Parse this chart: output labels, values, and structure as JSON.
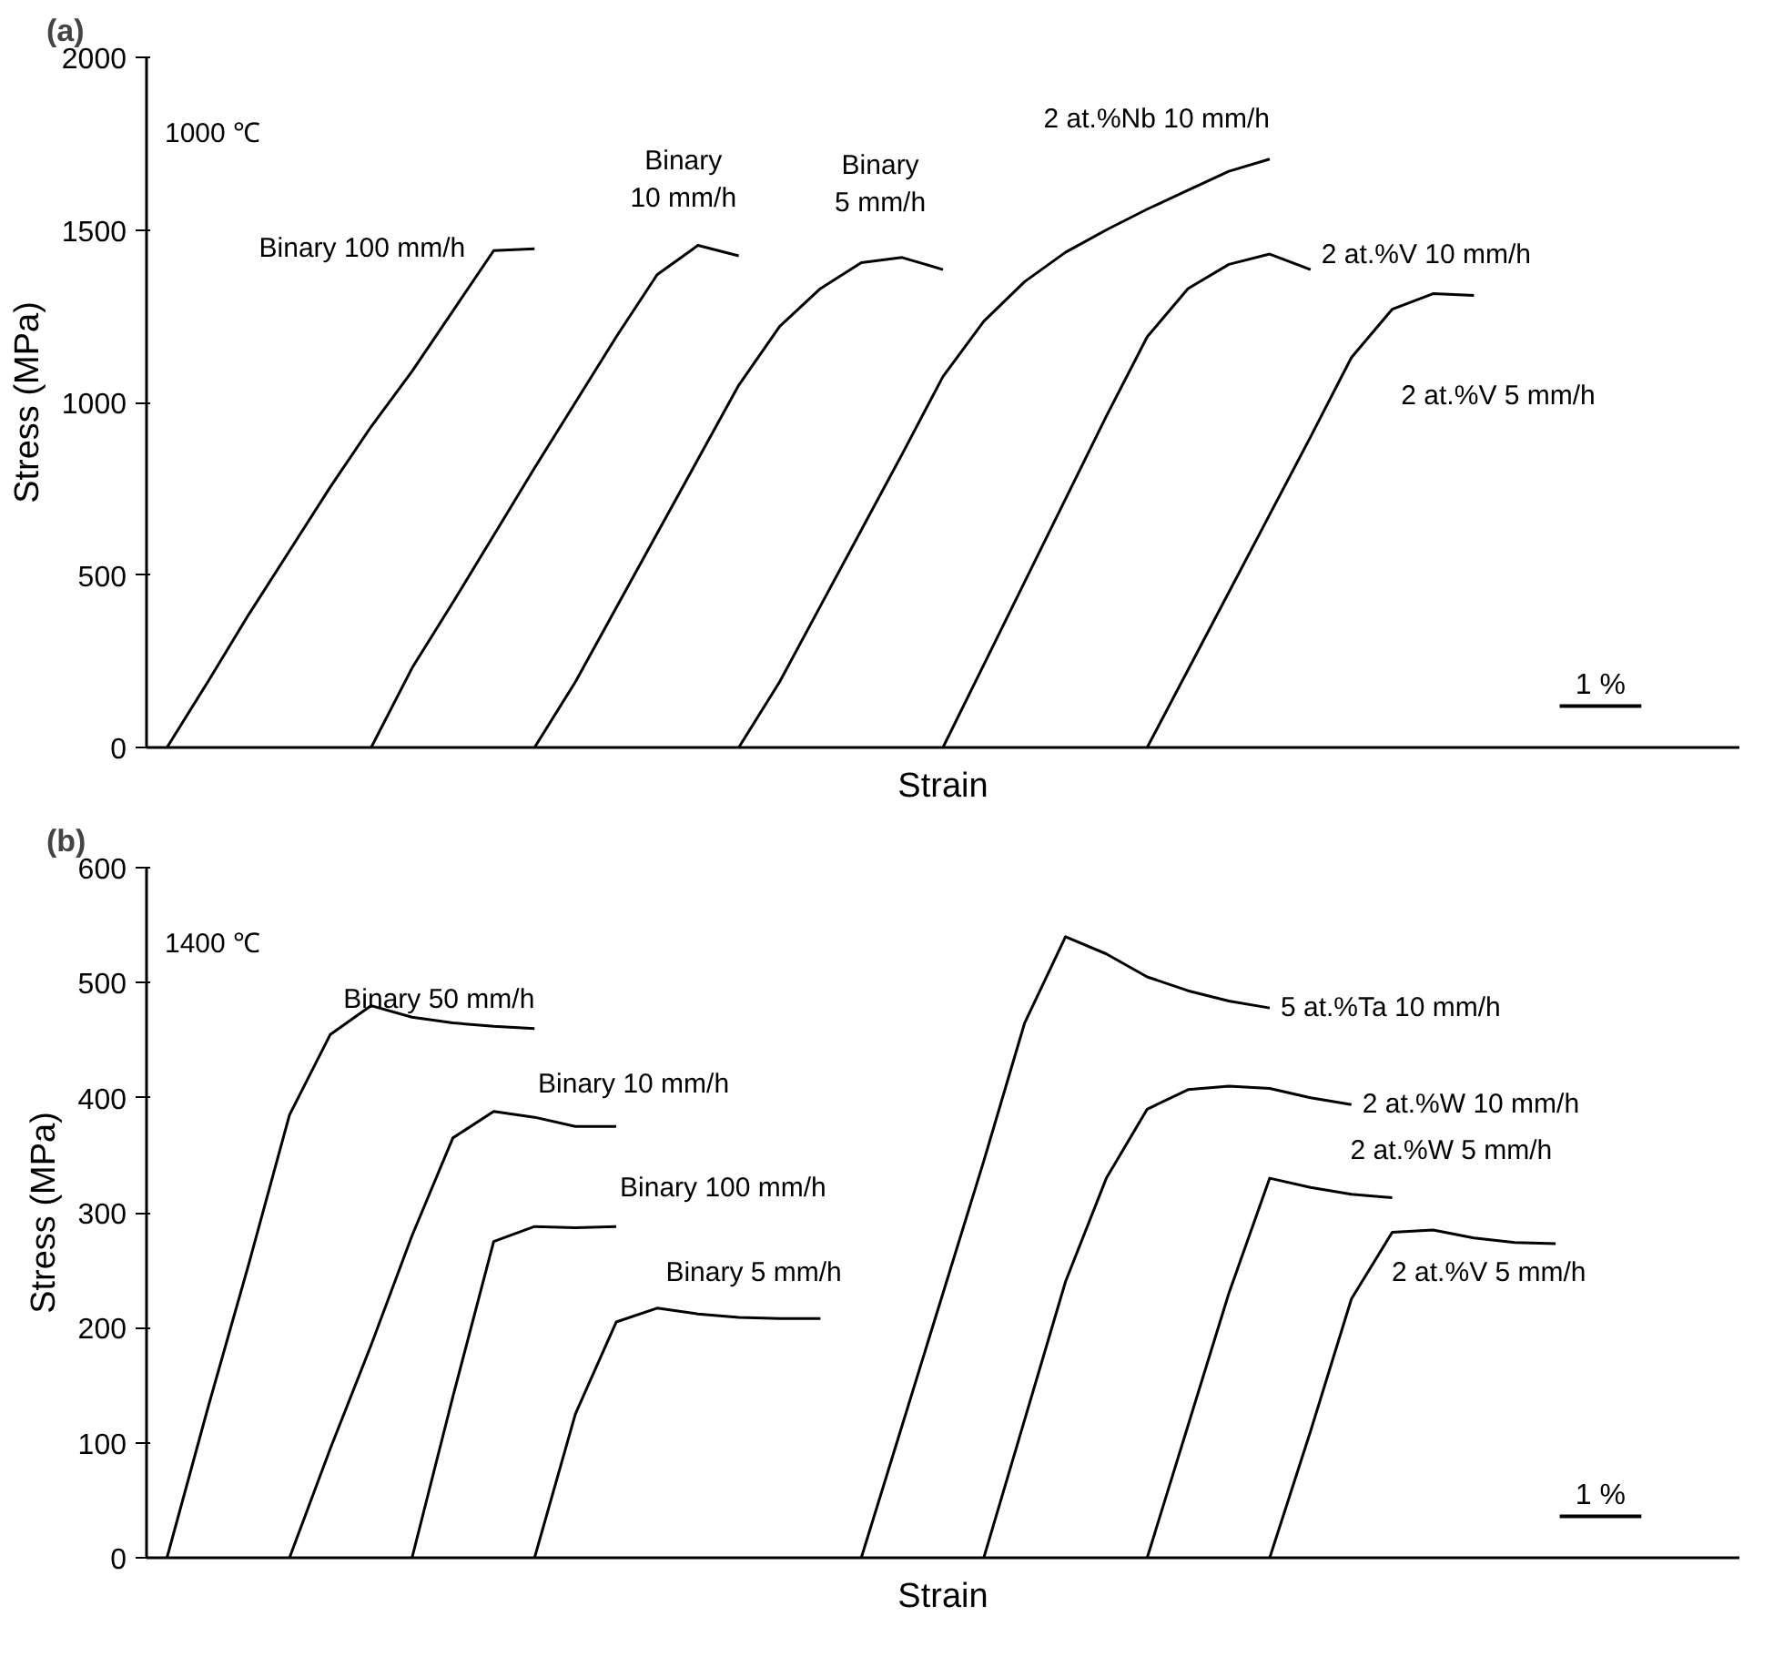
{
  "chart_data": [
    {
      "type": "line",
      "title": "(a)",
      "xlabel": "Strain",
      "ylabel": "Stress (MPa)",
      "ylim": [
        0,
        2000
      ],
      "yticks": [
        0,
        500,
        1000,
        1500,
        2000
      ],
      "tick_labels": "y",
      "grid": false,
      "legend": false,
      "marker": "none",
      "line_style": "solid",
      "categories": [
        null,
        null,
        null,
        null,
        null,
        null,
        null,
        null,
        null,
        null,
        null,
        null,
        null,
        null,
        null,
        null,
        null,
        null,
        null,
        null,
        null,
        null,
        null,
        null,
        null,
        null,
        null,
        null,
        null,
        null,
        null,
        null,
        null,
        null,
        null,
        null,
        null,
        null,
        null
      ],
      "series": [
        {
          "name": "Binary 100 mm/h",
          "color": "#000000",
          "values": [
            0,
            190,
            385,
            570,
            755,
            930,
            1090,
            1265,
            1440,
            1445,
            null,
            null,
            null,
            null,
            null,
            null,
            null,
            null,
            null,
            null,
            null,
            null,
            null,
            null,
            null,
            null,
            null,
            null,
            null,
            null,
            null,
            null,
            null,
            null,
            null,
            null,
            null,
            null,
            null
          ]
        },
        {
          "name": "Binary\n10 mm/h",
          "color": "#000000",
          "values": [
            null,
            null,
            null,
            null,
            null,
            0,
            230,
            420,
            615,
            810,
            1000,
            1190,
            1370,
            1455,
            1425,
            null,
            null,
            null,
            null,
            null,
            null,
            null,
            null,
            null,
            null,
            null,
            null,
            null,
            null,
            null,
            null,
            null,
            null,
            null,
            null,
            null,
            null,
            null,
            null
          ]
        },
        {
          "name": "Binary\n5 mm/h",
          "color": "#000000",
          "values": [
            null,
            null,
            null,
            null,
            null,
            null,
            null,
            null,
            null,
            0,
            190,
            405,
            620,
            835,
            1050,
            1220,
            1330,
            1405,
            1420,
            1385,
            null,
            null,
            null,
            null,
            null,
            null,
            null,
            null,
            null,
            null,
            null,
            null,
            null,
            null,
            null,
            null,
            null,
            null,
            null
          ]
        },
        {
          "name": "2 at.%Nb 10 mm/h",
          "color": "#000000",
          "values": [
            null,
            null,
            null,
            null,
            null,
            null,
            null,
            null,
            null,
            null,
            null,
            null,
            null,
            null,
            0,
            190,
            410,
            630,
            850,
            1075,
            1235,
            1350,
            1435,
            1500,
            1560,
            1615,
            1670,
            1705,
            null,
            null,
            null,
            null,
            null,
            null,
            null,
            null,
            null,
            null,
            null
          ]
        },
        {
          "name": "2 at.%V 10 mm/h",
          "color": "#000000",
          "values": [
            null,
            null,
            null,
            null,
            null,
            null,
            null,
            null,
            null,
            null,
            null,
            null,
            null,
            null,
            null,
            null,
            null,
            null,
            null,
            0,
            240,
            480,
            720,
            960,
            1190,
            1330,
            1400,
            1430,
            1385,
            null,
            null,
            null,
            null,
            null,
            null,
            null,
            null,
            null,
            null
          ]
        },
        {
          "name": "2 at.%V 5 mm/h",
          "color": "#000000",
          "values": [
            null,
            null,
            null,
            null,
            null,
            null,
            null,
            null,
            null,
            null,
            null,
            null,
            null,
            null,
            null,
            null,
            null,
            null,
            null,
            null,
            null,
            null,
            null,
            null,
            0,
            225,
            450,
            675,
            900,
            1130,
            1270,
            1315,
            1310,
            null,
            null,
            null,
            null,
            null,
            null
          ]
        }
      ],
      "annotations": [
        "1000 ℃",
        "1 %"
      ]
    },
    {
      "type": "line",
      "title": "(b)",
      "xlabel": "Strain",
      "ylabel": "Stress (MPa)",
      "ylim": [
        0,
        600
      ],
      "yticks": [
        0,
        100,
        200,
        300,
        400,
        500,
        600
      ],
      "tick_labels": "y",
      "grid": false,
      "legend": false,
      "marker": "none",
      "line_style": "solid",
      "categories": [
        null,
        null,
        null,
        null,
        null,
        null,
        null,
        null,
        null,
        null,
        null,
        null,
        null,
        null,
        null,
        null,
        null,
        null,
        null,
        null,
        null,
        null,
        null,
        null,
        null,
        null,
        null,
        null,
        null,
        null,
        null,
        null,
        null,
        null,
        null,
        null,
        null,
        null,
        null
      ],
      "series": [
        {
          "name": "Binary 50 mm/h",
          "color": "#000000",
          "values": [
            0,
            130,
            255,
            385,
            455,
            480,
            470,
            465,
            462,
            460,
            null,
            null,
            null,
            null,
            null,
            null,
            null,
            null,
            null,
            null,
            null,
            null,
            null,
            null,
            null,
            null,
            null,
            null,
            null,
            null,
            null,
            null,
            null,
            null,
            null,
            null,
            null,
            null,
            null
          ]
        },
        {
          "name": "Binary 10 mm/h",
          "color": "#000000",
          "values": [
            null,
            null,
            null,
            0,
            95,
            185,
            280,
            365,
            388,
            383,
            375,
            375,
            null,
            null,
            null,
            null,
            null,
            null,
            null,
            null,
            null,
            null,
            null,
            null,
            null,
            null,
            null,
            null,
            null,
            null,
            null,
            null,
            null,
            null,
            null,
            null,
            null,
            null,
            null
          ]
        },
        {
          "name": "Binary 100 mm/h",
          "color": "#000000",
          "values": [
            null,
            null,
            null,
            null,
            null,
            null,
            0,
            140,
            275,
            288,
            287,
            288,
            null,
            null,
            null,
            null,
            null,
            null,
            null,
            null,
            null,
            null,
            null,
            null,
            null,
            null,
            null,
            null,
            null,
            null,
            null,
            null,
            null,
            null,
            null,
            null,
            null,
            null,
            null
          ]
        },
        {
          "name": "Binary 5 mm/h",
          "color": "#000000",
          "values": [
            null,
            null,
            null,
            null,
            null,
            null,
            null,
            null,
            null,
            0,
            125,
            205,
            217,
            212,
            209,
            208,
            208,
            null,
            null,
            null,
            null,
            null,
            null,
            null,
            null,
            null,
            null,
            null,
            null,
            null,
            null,
            null,
            null,
            null,
            null,
            null,
            null,
            null,
            null
          ]
        },
        {
          "name": "5 at.%Ta 10 mm/h",
          "color": "#000000",
          "values": [
            null,
            null,
            null,
            null,
            null,
            null,
            null,
            null,
            null,
            null,
            null,
            null,
            null,
            null,
            null,
            null,
            null,
            0,
            115,
            230,
            345,
            465,
            540,
            525,
            505,
            493,
            484,
            478,
            null,
            null,
            null,
            null,
            null,
            null,
            null,
            null,
            null,
            null,
            null
          ]
        },
        {
          "name": "2 at.%W 10 mm/h",
          "color": "#000000",
          "values": [
            null,
            null,
            null,
            null,
            null,
            null,
            null,
            null,
            null,
            null,
            null,
            null,
            null,
            null,
            null,
            null,
            null,
            null,
            null,
            null,
            0,
            120,
            240,
            330,
            390,
            407,
            410,
            408,
            400,
            394,
            null,
            null,
            null,
            null,
            null,
            null,
            null,
            null,
            null
          ]
        },
        {
          "name": "2 at.%W 5 mm/h",
          "color": "#000000",
          "values": [
            null,
            null,
            null,
            null,
            null,
            null,
            null,
            null,
            null,
            null,
            null,
            null,
            null,
            null,
            null,
            null,
            null,
            null,
            null,
            null,
            null,
            null,
            null,
            null,
            0,
            115,
            230,
            330,
            322,
            316,
            313,
            null,
            null,
            null,
            null,
            null,
            null,
            null,
            null
          ]
        },
        {
          "name": "2 at.%V 5 mm/h",
          "color": "#000000",
          "values": [
            null,
            null,
            null,
            null,
            null,
            null,
            null,
            null,
            null,
            null,
            null,
            null,
            null,
            null,
            null,
            null,
            null,
            null,
            null,
            null,
            null,
            null,
            null,
            null,
            null,
            null,
            null,
            0,
            110,
            225,
            283,
            285,
            278,
            274,
            273,
            null,
            null,
            null,
            null
          ]
        }
      ],
      "annotations": [
        "1400 ℃",
        "1 %"
      ]
    }
  ]
}
